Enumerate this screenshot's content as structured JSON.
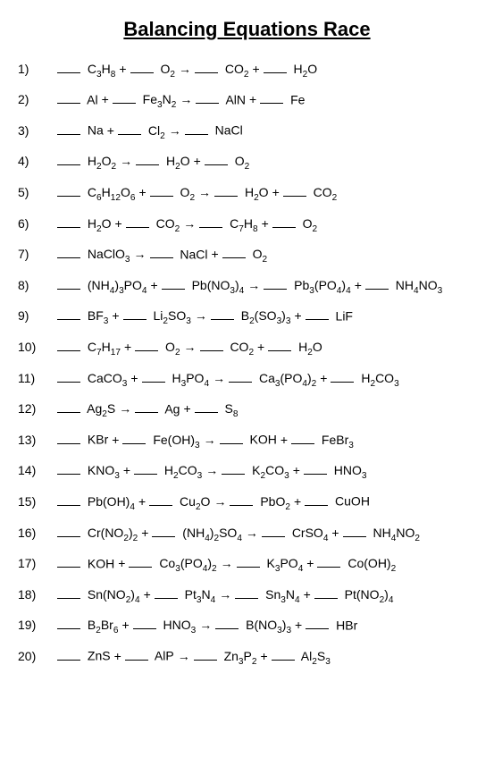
{
  "title": "Balancing Equations Race",
  "arrow_glyph": "→",
  "plus_glyph": "+",
  "problems": [
    {
      "num": "1)",
      "reactants": [
        [
          {
            "t": "C"
          },
          {
            "s": "3"
          },
          {
            "t": "H"
          },
          {
            "s": "8"
          }
        ],
        [
          {
            "t": "O"
          },
          {
            "s": "2"
          }
        ]
      ],
      "products": [
        [
          {
            "t": "CO"
          },
          {
            "s": "2"
          }
        ],
        [
          {
            "t": "H"
          },
          {
            "s": "2"
          },
          {
            "t": "O"
          }
        ]
      ]
    },
    {
      "num": "2)",
      "reactants": [
        [
          {
            "t": "Al"
          }
        ],
        [
          {
            "t": "Fe"
          },
          {
            "s": "3"
          },
          {
            "t": "N"
          },
          {
            "s": "2"
          }
        ]
      ],
      "products": [
        [
          {
            "t": "AlN"
          }
        ],
        [
          {
            "t": "Fe"
          }
        ]
      ]
    },
    {
      "num": "3)",
      "reactants": [
        [
          {
            "t": "Na"
          }
        ],
        [
          {
            "t": "Cl"
          },
          {
            "s": "2"
          }
        ]
      ],
      "products": [
        [
          {
            "t": "NaCl"
          }
        ]
      ]
    },
    {
      "num": "4)",
      "reactants": [
        [
          {
            "t": "H"
          },
          {
            "s": "2"
          },
          {
            "t": "O"
          },
          {
            "s": "2"
          }
        ]
      ],
      "products": [
        [
          {
            "t": "H"
          },
          {
            "s": "2"
          },
          {
            "t": "O"
          }
        ],
        [
          {
            "t": "O"
          },
          {
            "s": "2"
          }
        ]
      ]
    },
    {
      "num": "5)",
      "reactants": [
        [
          {
            "t": "C"
          },
          {
            "s": "6"
          },
          {
            "t": "H"
          },
          {
            "s": "12"
          },
          {
            "t": "O"
          },
          {
            "s": "6"
          }
        ],
        [
          {
            "t": "O"
          },
          {
            "s": "2"
          }
        ]
      ],
      "products": [
        [
          {
            "t": "H"
          },
          {
            "s": "2"
          },
          {
            "t": "O"
          }
        ],
        [
          {
            "t": "CO"
          },
          {
            "s": "2"
          }
        ]
      ]
    },
    {
      "num": "6)",
      "reactants": [
        [
          {
            "t": "H"
          },
          {
            "s": "2"
          },
          {
            "t": "O"
          }
        ],
        [
          {
            "t": "CO"
          },
          {
            "s": "2"
          }
        ]
      ],
      "products": [
        [
          {
            "t": "C"
          },
          {
            "s": "7"
          },
          {
            "t": "H"
          },
          {
            "s": "8"
          }
        ],
        [
          {
            "t": "O"
          },
          {
            "s": "2"
          }
        ]
      ]
    },
    {
      "num": "7)",
      "reactants": [
        [
          {
            "t": "NaClO"
          },
          {
            "s": "3"
          }
        ]
      ],
      "products": [
        [
          {
            "t": "NaCl"
          }
        ],
        [
          {
            "t": "O"
          },
          {
            "s": "2"
          }
        ]
      ]
    },
    {
      "num": "8)",
      "reactants": [
        [
          {
            "t": "(NH"
          },
          {
            "s": "4"
          },
          {
            "t": ")"
          },
          {
            "s": "3"
          },
          {
            "t": "PO"
          },
          {
            "s": "4"
          }
        ],
        [
          {
            "t": "Pb(NO"
          },
          {
            "s": "3"
          },
          {
            "t": ")"
          },
          {
            "s": "4"
          }
        ]
      ],
      "products": [
        [
          {
            "t": "Pb"
          },
          {
            "s": "3"
          },
          {
            "t": "(PO"
          },
          {
            "s": "4"
          },
          {
            "t": ")"
          },
          {
            "s": "4"
          }
        ],
        [
          {
            "t": "NH"
          },
          {
            "s": "4"
          },
          {
            "t": "NO"
          },
          {
            "s": "3"
          }
        ]
      ]
    },
    {
      "num": "9)",
      "reactants": [
        [
          {
            "t": "BF"
          },
          {
            "s": "3"
          }
        ],
        [
          {
            "t": "Li"
          },
          {
            "s": "2"
          },
          {
            "t": "SO"
          },
          {
            "s": "3"
          }
        ]
      ],
      "products": [
        [
          {
            "t": "B"
          },
          {
            "s": "2"
          },
          {
            "t": "(SO"
          },
          {
            "s": "3"
          },
          {
            "t": ")"
          },
          {
            "s": "3"
          }
        ],
        [
          {
            "t": "LiF"
          }
        ]
      ]
    },
    {
      "num": "10)",
      "reactants": [
        [
          {
            "t": "C"
          },
          {
            "s": "7"
          },
          {
            "t": "H"
          },
          {
            "s": "17"
          }
        ],
        [
          {
            "t": "O"
          },
          {
            "s": "2"
          }
        ]
      ],
      "products": [
        [
          {
            "t": "CO"
          },
          {
            "s": "2"
          }
        ],
        [
          {
            "t": "H"
          },
          {
            "s": "2"
          },
          {
            "t": "O"
          }
        ]
      ]
    },
    {
      "num": "11)",
      "reactants": [
        [
          {
            "t": "CaCO"
          },
          {
            "s": "3"
          }
        ],
        [
          {
            "t": "H"
          },
          {
            "s": "3"
          },
          {
            "t": "PO"
          },
          {
            "s": "4"
          }
        ]
      ],
      "products": [
        [
          {
            "t": "Ca"
          },
          {
            "s": "3"
          },
          {
            "t": "(PO"
          },
          {
            "s": "4"
          },
          {
            "t": ")"
          },
          {
            "s": "2"
          }
        ],
        [
          {
            "t": "H"
          },
          {
            "s": "2"
          },
          {
            "t": "CO"
          },
          {
            "s": "3"
          }
        ]
      ]
    },
    {
      "num": "12)",
      "reactants": [
        [
          {
            "t": "Ag"
          },
          {
            "s": "2"
          },
          {
            "t": "S"
          }
        ]
      ],
      "products": [
        [
          {
            "t": "Ag"
          }
        ],
        [
          {
            "t": "S"
          },
          {
            "s": "8"
          }
        ]
      ]
    },
    {
      "num": "13)",
      "reactants": [
        [
          {
            "t": "KBr"
          }
        ],
        [
          {
            "t": "Fe(OH)"
          },
          {
            "s": "3"
          }
        ]
      ],
      "products": [
        [
          {
            "t": "KOH"
          }
        ],
        [
          {
            "t": "FeBr"
          },
          {
            "s": "3"
          }
        ]
      ]
    },
    {
      "num": "14)",
      "reactants": [
        [
          {
            "t": "KNO"
          },
          {
            "s": "3"
          }
        ],
        [
          {
            "t": "H"
          },
          {
            "s": "2"
          },
          {
            "t": "CO"
          },
          {
            "s": "3"
          }
        ]
      ],
      "products": [
        [
          {
            "t": "K"
          },
          {
            "s": "2"
          },
          {
            "t": "CO"
          },
          {
            "s": "3"
          }
        ],
        [
          {
            "t": "HNO"
          },
          {
            "s": "3"
          }
        ]
      ]
    },
    {
      "num": "15)",
      "reactants": [
        [
          {
            "t": "Pb(OH)"
          },
          {
            "s": "4"
          }
        ],
        [
          {
            "t": "Cu"
          },
          {
            "s": "2"
          },
          {
            "t": "O"
          }
        ]
      ],
      "products": [
        [
          {
            "t": "PbO"
          },
          {
            "s": "2"
          }
        ],
        [
          {
            "t": "CuOH"
          }
        ]
      ]
    },
    {
      "num": "16)",
      "reactants": [
        [
          {
            "t": "Cr(NO"
          },
          {
            "s": "2"
          },
          {
            "t": ")"
          },
          {
            "s": "2"
          }
        ],
        [
          {
            "t": "(NH"
          },
          {
            "s": "4"
          },
          {
            "t": ")"
          },
          {
            "s": "2"
          },
          {
            "t": "SO"
          },
          {
            "s": "4"
          }
        ]
      ],
      "products": [
        [
          {
            "t": "CrSO"
          },
          {
            "s": "4"
          }
        ],
        [
          {
            "t": "NH"
          },
          {
            "s": "4"
          },
          {
            "t": "NO"
          },
          {
            "s": "2"
          }
        ]
      ]
    },
    {
      "num": "17)",
      "reactants": [
        [
          {
            "t": "KOH"
          }
        ],
        [
          {
            "t": "Co"
          },
          {
            "s": "3"
          },
          {
            "t": "(PO"
          },
          {
            "s": "4"
          },
          {
            "t": ")"
          },
          {
            "s": "2"
          }
        ]
      ],
      "products": [
        [
          {
            "t": "K"
          },
          {
            "s": "3"
          },
          {
            "t": "PO"
          },
          {
            "s": "4"
          }
        ],
        [
          {
            "t": "Co(OH)"
          },
          {
            "s": "2"
          }
        ]
      ]
    },
    {
      "num": "18)",
      "reactants": [
        [
          {
            "t": "Sn(NO"
          },
          {
            "s": "2"
          },
          {
            "t": ")"
          },
          {
            "s": "4"
          }
        ],
        [
          {
            "t": "Pt"
          },
          {
            "s": "3"
          },
          {
            "t": "N"
          },
          {
            "s": "4"
          }
        ]
      ],
      "products": [
        [
          {
            "t": "Sn"
          },
          {
            "s": "3"
          },
          {
            "t": "N"
          },
          {
            "s": "4"
          }
        ],
        [
          {
            "t": "Pt(NO"
          },
          {
            "s": "2"
          },
          {
            "t": ")"
          },
          {
            "s": "4"
          }
        ]
      ]
    },
    {
      "num": "19)",
      "reactants": [
        [
          {
            "t": "B"
          },
          {
            "s": "2"
          },
          {
            "t": "Br"
          },
          {
            "s": "6"
          }
        ],
        [
          {
            "t": "HNO"
          },
          {
            "s": "3"
          }
        ]
      ],
      "products": [
        [
          {
            "t": "B(NO"
          },
          {
            "s": "3"
          },
          {
            "t": ")"
          },
          {
            "s": "3"
          }
        ],
        [
          {
            "t": "HBr"
          }
        ]
      ]
    },
    {
      "num": "20)",
      "reactants": [
        [
          {
            "t": "ZnS"
          }
        ],
        [
          {
            "t": "AlP"
          }
        ]
      ],
      "products": [
        [
          {
            "t": "Zn"
          },
          {
            "s": "3"
          },
          {
            "t": "P"
          },
          {
            "s": "2"
          }
        ],
        [
          {
            "t": "Al"
          },
          {
            "s": "2"
          },
          {
            "t": "S"
          },
          {
            "s": "3"
          }
        ]
      ]
    }
  ]
}
